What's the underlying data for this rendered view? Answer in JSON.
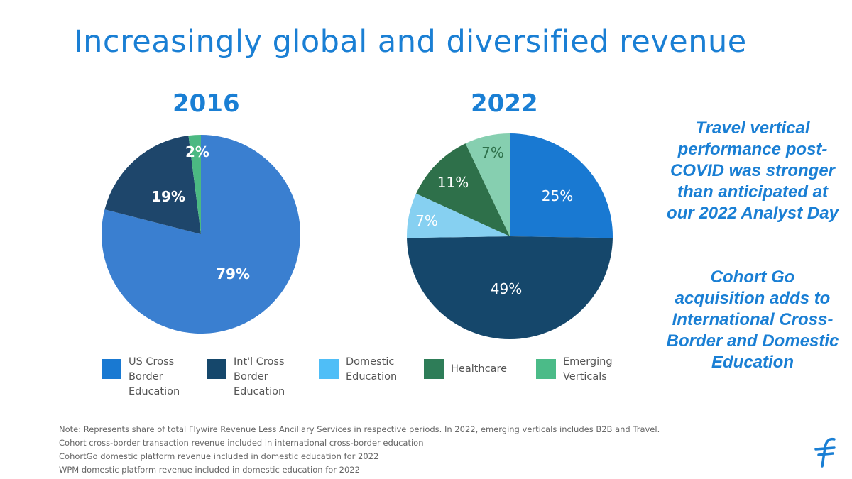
{
  "title": "Increasingly global and diversified revenue",
  "side_notes": [
    "Travel vertical performance post-COVID was stronger than anticipated at our 2022 Analyst Day",
    "Cohort Go acquisition adds to International Cross-Border and Domestic Education"
  ],
  "chart_data": [
    {
      "type": "pie",
      "title": "2016",
      "categories": [
        "US Cross Border Education",
        "Int'l Cross Border Education",
        "Emerging Verticals"
      ],
      "values": [
        79,
        19,
        2
      ],
      "labels": [
        "79%",
        "19%",
        "2%"
      ],
      "colors": [
        "#3a7fd0",
        "#1e466b",
        "#4bb982"
      ]
    },
    {
      "type": "pie",
      "title": "2022",
      "categories": [
        "US Cross Border Education",
        "Int'l Cross Border Education",
        "Domestic Education",
        "Healthcare",
        "Emerging Verticals"
      ],
      "values": [
        25,
        49,
        7,
        11,
        7
      ],
      "labels": [
        "25%",
        "49%",
        "7%",
        "11%",
        "7%"
      ],
      "colors": [
        "#1979d2",
        "#15476b",
        "#86d0f1",
        "#2e704a",
        "#86cfb0"
      ]
    }
  ],
  "legend": [
    {
      "label": "US Cross\nBorder\nEducation",
      "color": "#1979d2"
    },
    {
      "label": "Int'l Cross\nBorder\nEducation",
      "color": "#15476b"
    },
    {
      "label": "Domestic\nEducation",
      "color": "#4fbef7"
    },
    {
      "label": "Healthcare",
      "color": "#2e7d58"
    },
    {
      "label": "Emerging\nVerticals",
      "color": "#4bbb88"
    }
  ],
  "notes": [
    "Note: Represents share of total Flywire Revenue Less Ancillary Services in respective periods. In 2022, emerging verticals includes B2B and Travel.",
    "Cohort cross-border transaction revenue included in international cross-border education",
    "CohortGo domestic platform revenue included in domestic education for 2022",
    "WPM domestic platform revenue included in domestic education for 2022"
  ],
  "logo_icon": "flywire-logo-icon"
}
